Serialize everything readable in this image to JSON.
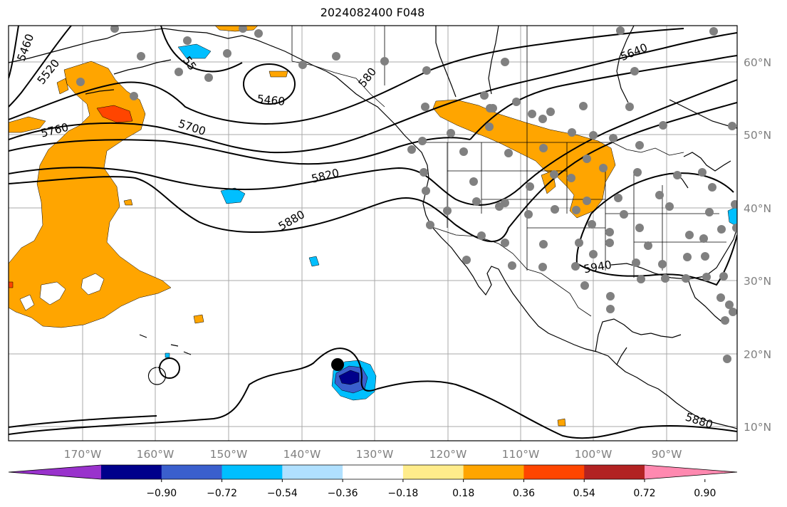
{
  "title": "2024082400 F048",
  "map": {
    "lon_labels": [
      "170°W",
      "160°W",
      "150°W",
      "140°W",
      "130°W",
      "120°W",
      "110°W",
      "100°W",
      "90°W"
    ],
    "lat_labels": [
      "60°N",
      "50°N",
      "40°N",
      "30°N",
      "20°N",
      "10°N"
    ],
    "contour_labels": [
      "5460",
      "5520",
      "5760",
      "5700",
      "5460",
      "55",
      "5820",
      "5880",
      "580",
      "5640",
      "5940",
      "5880"
    ],
    "colors": {
      "positive_fill": "#ffa500",
      "positive_strong": "#ff4500",
      "negative_fill": "#00bfff",
      "negative_strong": "#0000a0",
      "stations": "#808080"
    }
  },
  "colorbar": {
    "ticks": [
      "−0.90",
      "−0.72",
      "−0.54",
      "−0.36",
      "−0.18",
      "0.18",
      "0.36",
      "0.54",
      "0.72",
      "0.90"
    ],
    "colors": [
      "#9932cc",
      "#00008b",
      "#3a5fcd",
      "#00bfff",
      "#b0e0ff",
      "#ffffff",
      "#ffec8b",
      "#ffa500",
      "#ff4500",
      "#b22222",
      "#ff89b0"
    ]
  }
}
